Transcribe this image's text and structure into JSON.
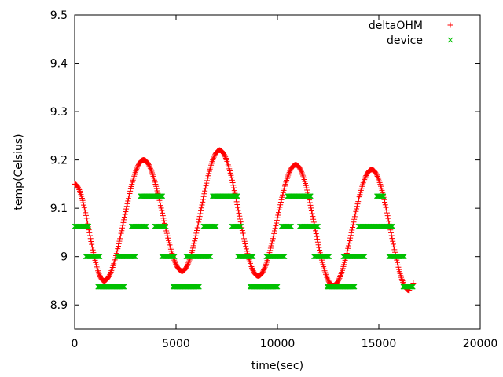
{
  "chart_data": {
    "type": "scatter",
    "xlabel": "time(sec)",
    "ylabel": "temp(Celsius)",
    "xlim": [
      0,
      20000
    ],
    "ylim": [
      8.85,
      9.5
    ],
    "x_ticks": [
      0,
      5000,
      10000,
      15000,
      20000
    ],
    "y_ticks": [
      8.9,
      9,
      9.1,
      9.2,
      9.3,
      9.4,
      9.5
    ],
    "x_tick_labels": [
      "0",
      "5000",
      "10000",
      "15000",
      "20000"
    ],
    "y_tick_labels": [
      "8.9",
      "9",
      "9.1",
      "9.2",
      "9.3",
      "9.4",
      "9.5"
    ],
    "grid": false,
    "legend_position": "top-right",
    "series": [
      {
        "name": "deltaOHM",
        "marker": "plus",
        "color": "#ff0000",
        "peaks_and_troughs": [
          {
            "x": 0,
            "y": 9.15
          },
          {
            "x": 1450,
            "y": 8.95
          },
          {
            "x": 3400,
            "y": 9.2
          },
          {
            "x": 5300,
            "y": 8.97
          },
          {
            "x": 7150,
            "y": 9.22
          },
          {
            "x": 9050,
            "y": 8.96
          },
          {
            "x": 10900,
            "y": 9.19
          },
          {
            "x": 12750,
            "y": 8.94
          },
          {
            "x": 14650,
            "y": 9.18
          },
          {
            "x": 16500,
            "y": 8.93
          }
        ]
      },
      {
        "name": "device",
        "marker": "cross",
        "color": "#00c000",
        "segments": [
          {
            "x0": 0,
            "x1": 700,
            "y": 9.0625
          },
          {
            "x0": 550,
            "x1": 1250,
            "y": 9.0
          },
          {
            "x0": 1150,
            "x1": 2450,
            "y": 8.9375
          },
          {
            "x0": 2100,
            "x1": 3000,
            "y": 9.0
          },
          {
            "x0": 2800,
            "x1": 3550,
            "y": 9.0625
          },
          {
            "x0": 3250,
            "x1": 4350,
            "y": 9.125
          },
          {
            "x0": 3950,
            "x1": 4500,
            "y": 9.0625
          },
          {
            "x0": 4300,
            "x1": 4950,
            "y": 9.0
          },
          {
            "x0": 4850,
            "x1": 6150,
            "y": 8.9375
          },
          {
            "x0": 5500,
            "x1": 6700,
            "y": 9.0
          },
          {
            "x0": 6350,
            "x1": 7000,
            "y": 9.0625
          },
          {
            "x0": 6800,
            "x1": 8050,
            "y": 9.125
          },
          {
            "x0": 7750,
            "x1": 8200,
            "y": 9.0625
          },
          {
            "x0": 8050,
            "x1": 8800,
            "y": 9.0
          },
          {
            "x0": 8650,
            "x1": 10000,
            "y": 8.9375
          },
          {
            "x0": 9450,
            "x1": 10350,
            "y": 9.0
          },
          {
            "x0": 10200,
            "x1": 10700,
            "y": 9.0625
          },
          {
            "x0": 10500,
            "x1": 11650,
            "y": 9.125
          },
          {
            "x0": 11100,
            "x1": 12000,
            "y": 9.0625
          },
          {
            "x0": 11800,
            "x1": 12550,
            "y": 9.0
          },
          {
            "x0": 12450,
            "x1": 13800,
            "y": 8.9375
          },
          {
            "x0": 13250,
            "x1": 14300,
            "y": 9.0
          },
          {
            "x0": 14000,
            "x1": 15700,
            "y": 9.0625
          },
          {
            "x0": 14900,
            "x1": 15250,
            "y": 9.125
          },
          {
            "x0": 15500,
            "x1": 16250,
            "y": 9.0
          },
          {
            "x0": 16200,
            "x1": 16700,
            "y": 8.9375
          }
        ]
      }
    ]
  }
}
